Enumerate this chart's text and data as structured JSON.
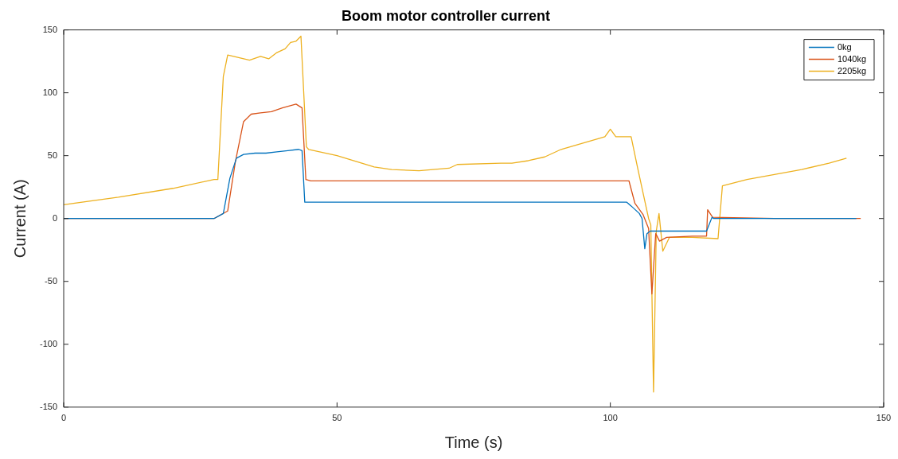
{
  "chart_data": {
    "type": "line",
    "title": "Boom motor controller current",
    "xlabel": "Time (s)",
    "ylabel": "Current (A)",
    "xlim": [
      0,
      150
    ],
    "xticks": [
      0,
      50,
      100,
      150
    ],
    "ylim": [
      -150,
      150
    ],
    "yticks": [
      -150,
      -100,
      -50,
      0,
      50,
      100,
      150
    ],
    "grid": false,
    "legend": "top right",
    "marker": "none",
    "line_style": "solid",
    "series": [
      {
        "name": "0kg",
        "color": "#0072bd",
        "x": [
          0,
          27.5,
          29.2,
          30.4,
          31.6,
          32.9,
          35,
          37,
          39,
          41,
          43,
          43.6,
          44.1,
          45,
          60,
          80,
          103,
          103.8,
          105.3,
          105.8,
          106.3,
          106.7,
          107.3,
          110,
          115,
          117.6,
          118.6,
          118.9,
          130,
          145
        ],
        "values": [
          0,
          0,
          4,
          32,
          48,
          51,
          52,
          52,
          53,
          54,
          55,
          54,
          13,
          13,
          13,
          13,
          13,
          10,
          4,
          0,
          -24,
          -12,
          -10,
          -10,
          -10,
          -10,
          1,
          0,
          0,
          0
        ]
      },
      {
        "name": "1040kg",
        "color": "#d95319",
        "x": [
          0,
          27.5,
          30,
          31.4,
          32.9,
          34.3,
          36,
          38,
          40,
          42.5,
          43.6,
          44.3,
          45.2,
          60,
          80,
          103.4,
          104.5,
          106,
          107,
          107.6,
          108.3,
          109,
          110.3,
          115,
          117.6,
          117.8,
          118.7,
          130,
          145.8
        ],
        "values": [
          0,
          0,
          6,
          45,
          77,
          83,
          84,
          85,
          88,
          91,
          88,
          31,
          30,
          30,
          30,
          30,
          12,
          3,
          -8,
          -60,
          -12,
          -18,
          -15,
          -14,
          -14,
          7,
          1,
          0,
          0
        ]
      },
      {
        "name": "2205kg",
        "color": "#edb120",
        "x": [
          0,
          10,
          20,
          27.5,
          28.2,
          29.2,
          30,
          32,
          34,
          36,
          37.5,
          39,
          40.5,
          41.5,
          42.5,
          43.4,
          44.4,
          44.8,
          50,
          56.8,
          60,
          65,
          70.5,
          72,
          80,
          82,
          85,
          88,
          91,
          95,
          99,
          100,
          101,
          103.8,
          105,
          107,
          107.4,
          107.9,
          108.4,
          108.9,
          109.6,
          110.8,
          115,
          119.7,
          120.5,
          125,
          130,
          135,
          140,
          143.2
        ],
        "values": [
          11,
          17,
          24,
          31,
          31,
          113,
          130,
          128,
          126,
          129,
          127,
          132,
          135,
          140,
          141,
          145,
          57,
          55,
          50,
          41,
          39,
          38,
          40,
          43,
          44,
          44,
          46,
          49,
          55,
          60,
          65,
          71,
          65,
          65,
          40,
          0,
          -5,
          -138,
          -10,
          4,
          -26,
          -15,
          -15,
          -16,
          26,
          31,
          35,
          39,
          44,
          48
        ]
      }
    ]
  }
}
